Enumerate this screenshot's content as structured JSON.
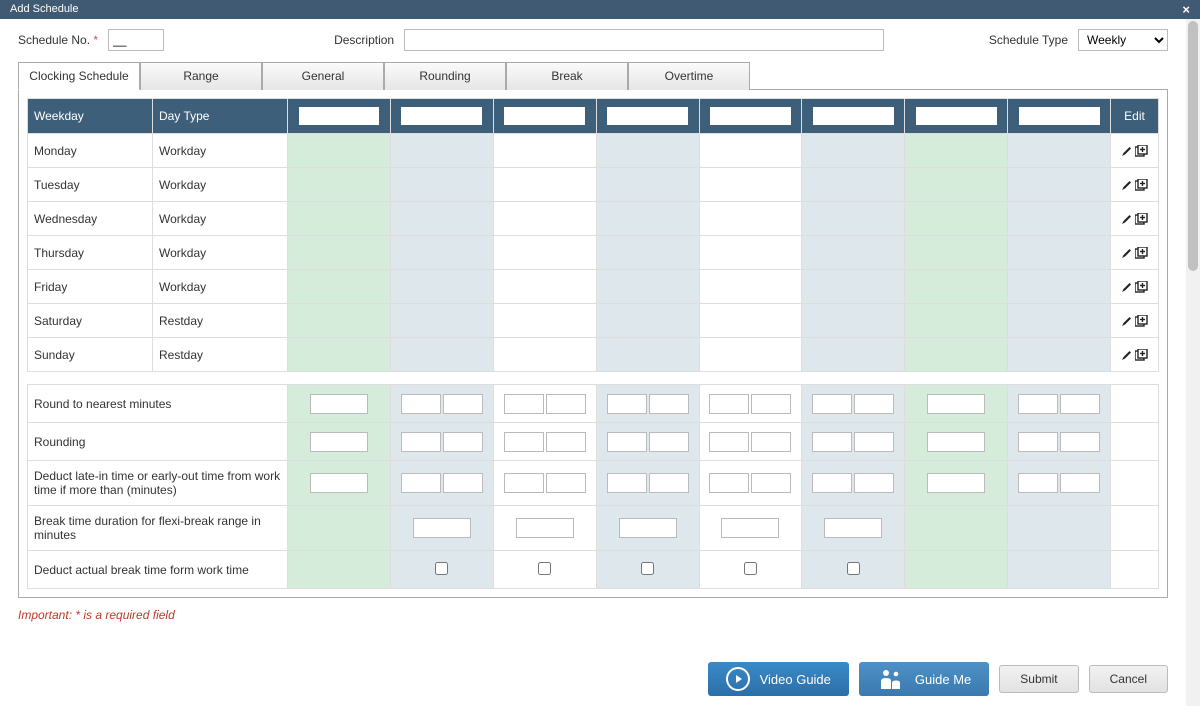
{
  "dialog": {
    "title": "Add Schedule",
    "close_symbol": "×"
  },
  "form": {
    "schedule_no_label": "Schedule No.",
    "schedule_no_value": "__",
    "description_label": "Description",
    "description_value": "",
    "schedule_type_label": "Schedule Type",
    "schedule_type_value": "Weekly"
  },
  "tabs": [
    {
      "label": "Clocking Schedule",
      "active": true
    },
    {
      "label": "Range",
      "active": false
    },
    {
      "label": "General",
      "active": false
    },
    {
      "label": "Rounding",
      "active": false
    },
    {
      "label": "Break",
      "active": false
    },
    {
      "label": "Overtime",
      "active": false
    }
  ],
  "table": {
    "headers": {
      "weekday": "Weekday",
      "daytype": "Day Type",
      "edit": "Edit"
    },
    "time_column_count": 8,
    "col_green_indices": [
      0,
      6
    ],
    "col_blue_indices": [
      1,
      3,
      5,
      7
    ],
    "rows": [
      {
        "weekday": "Monday",
        "daytype": "Workday"
      },
      {
        "weekday": "Tuesday",
        "daytype": "Workday"
      },
      {
        "weekday": "Wednesday",
        "daytype": "Workday"
      },
      {
        "weekday": "Thursday",
        "daytype": "Workday"
      },
      {
        "weekday": "Friday",
        "daytype": "Workday"
      },
      {
        "weekday": "Saturday",
        "daytype": "Restday"
      },
      {
        "weekday": "Sunday",
        "daytype": "Restday"
      }
    ]
  },
  "rules": {
    "rows": [
      {
        "label": "Round to nearest minutes",
        "type": "single_plus_pairs"
      },
      {
        "label": "Rounding",
        "type": "single_plus_pairs"
      },
      {
        "label": "Deduct late-in time or early-out time from work time if more than (minutes)",
        "type": "single_plus_pairs"
      },
      {
        "label": "Break time duration for flexi-break range in minutes",
        "type": "break_singles"
      },
      {
        "label": "Deduct actual break time form work time",
        "type": "break_checks"
      }
    ]
  },
  "footer": {
    "note": "Important: * is a required field",
    "video_label": "Video Guide",
    "guide_label": "Guide Me",
    "submit_label": "Submit",
    "cancel_label": "Cancel"
  },
  "colors": {
    "header_bg": "#3e5f7a",
    "titlebar_bg": "#405a73",
    "green_cell": "#d6ecdb",
    "blue_cell": "#dde7ec",
    "border": "#dddddd",
    "note_red": "#c0392b"
  }
}
